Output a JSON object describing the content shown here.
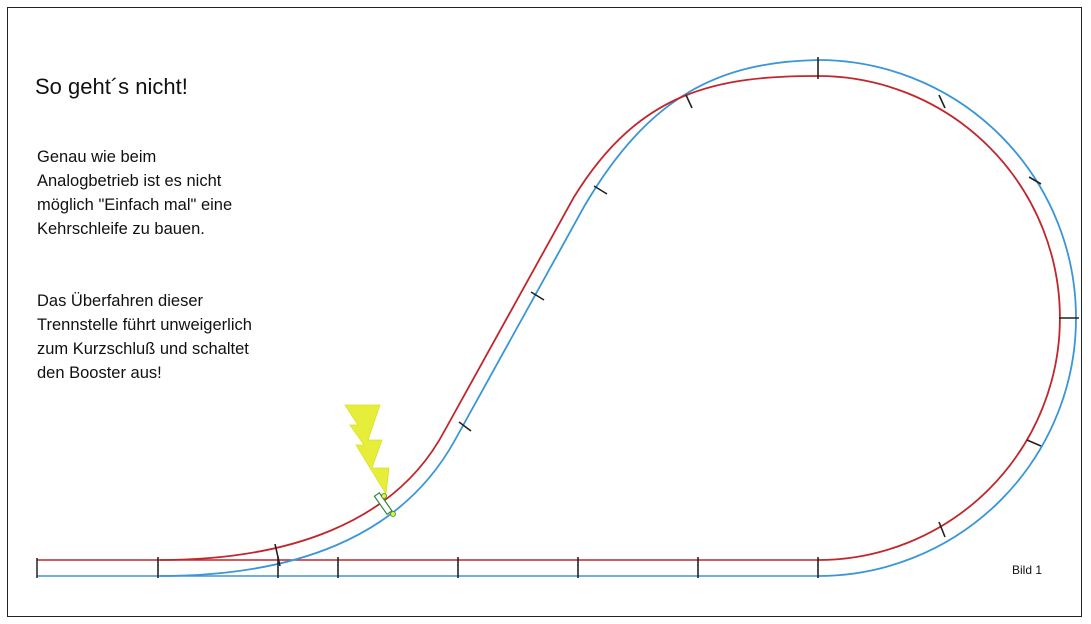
{
  "title": "So geht´s nicht!",
  "paragraph1": [
    "Genau wie beim",
    "Analogbetrieb ist es nicht",
    "möglich \"Einfach mal\" eine",
    "Kehrschleife zu bauen."
  ],
  "paragraph2": [
    "Das Überfahren dieser",
    "Trennstelle führt unweigerlich",
    "zum Kurzschluß und schaltet",
    "den Booster aus!"
  ],
  "figure_label": "Bild 1",
  "colors": {
    "outer_rail": "#3a96d6",
    "inner_rail": "#c0272d",
    "sleeper": "#222222",
    "spark": "#e6ee3a",
    "frame": "#222222"
  }
}
